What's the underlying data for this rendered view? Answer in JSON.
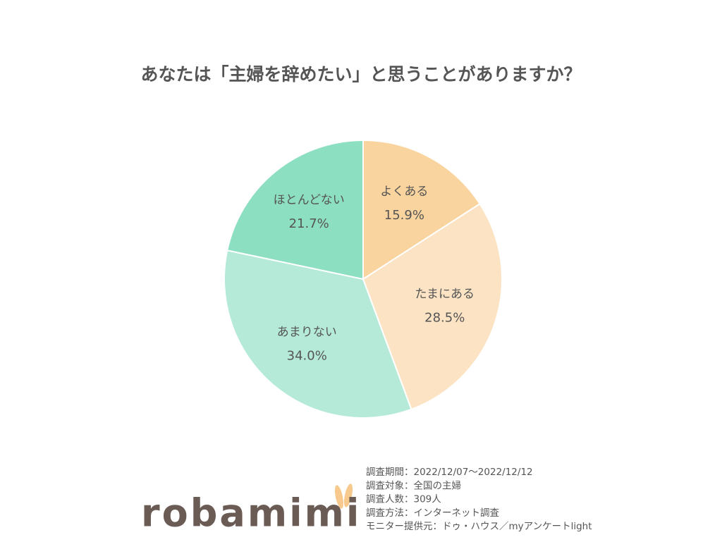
{
  "chart_data": {
    "type": "pie",
    "title": "あなたは「主婦を辞めたい」と思うことがありますか？",
    "categories": [
      "よくある",
      "たまにある",
      "あまりない",
      "ほとんどない"
    ],
    "values": [
      15.9,
      28.5,
      34.0,
      21.7
    ],
    "value_labels": [
      "15.9%",
      "28.5%",
      "34.0%",
      "21.7%"
    ],
    "colors": [
      "#f9d49e",
      "#fbe3c4",
      "#b5ead9",
      "#8ddfc2"
    ]
  },
  "footer": {
    "logo": "robamimi",
    "notes": [
      "調査期間：2022/12/07～2022/12/12",
      "調査対象：全国の主婦",
      "調査人数：309人",
      "調査方法：インターネット調査",
      "モニター提供元：ドゥ・ハウス／myアンケートlight"
    ]
  }
}
